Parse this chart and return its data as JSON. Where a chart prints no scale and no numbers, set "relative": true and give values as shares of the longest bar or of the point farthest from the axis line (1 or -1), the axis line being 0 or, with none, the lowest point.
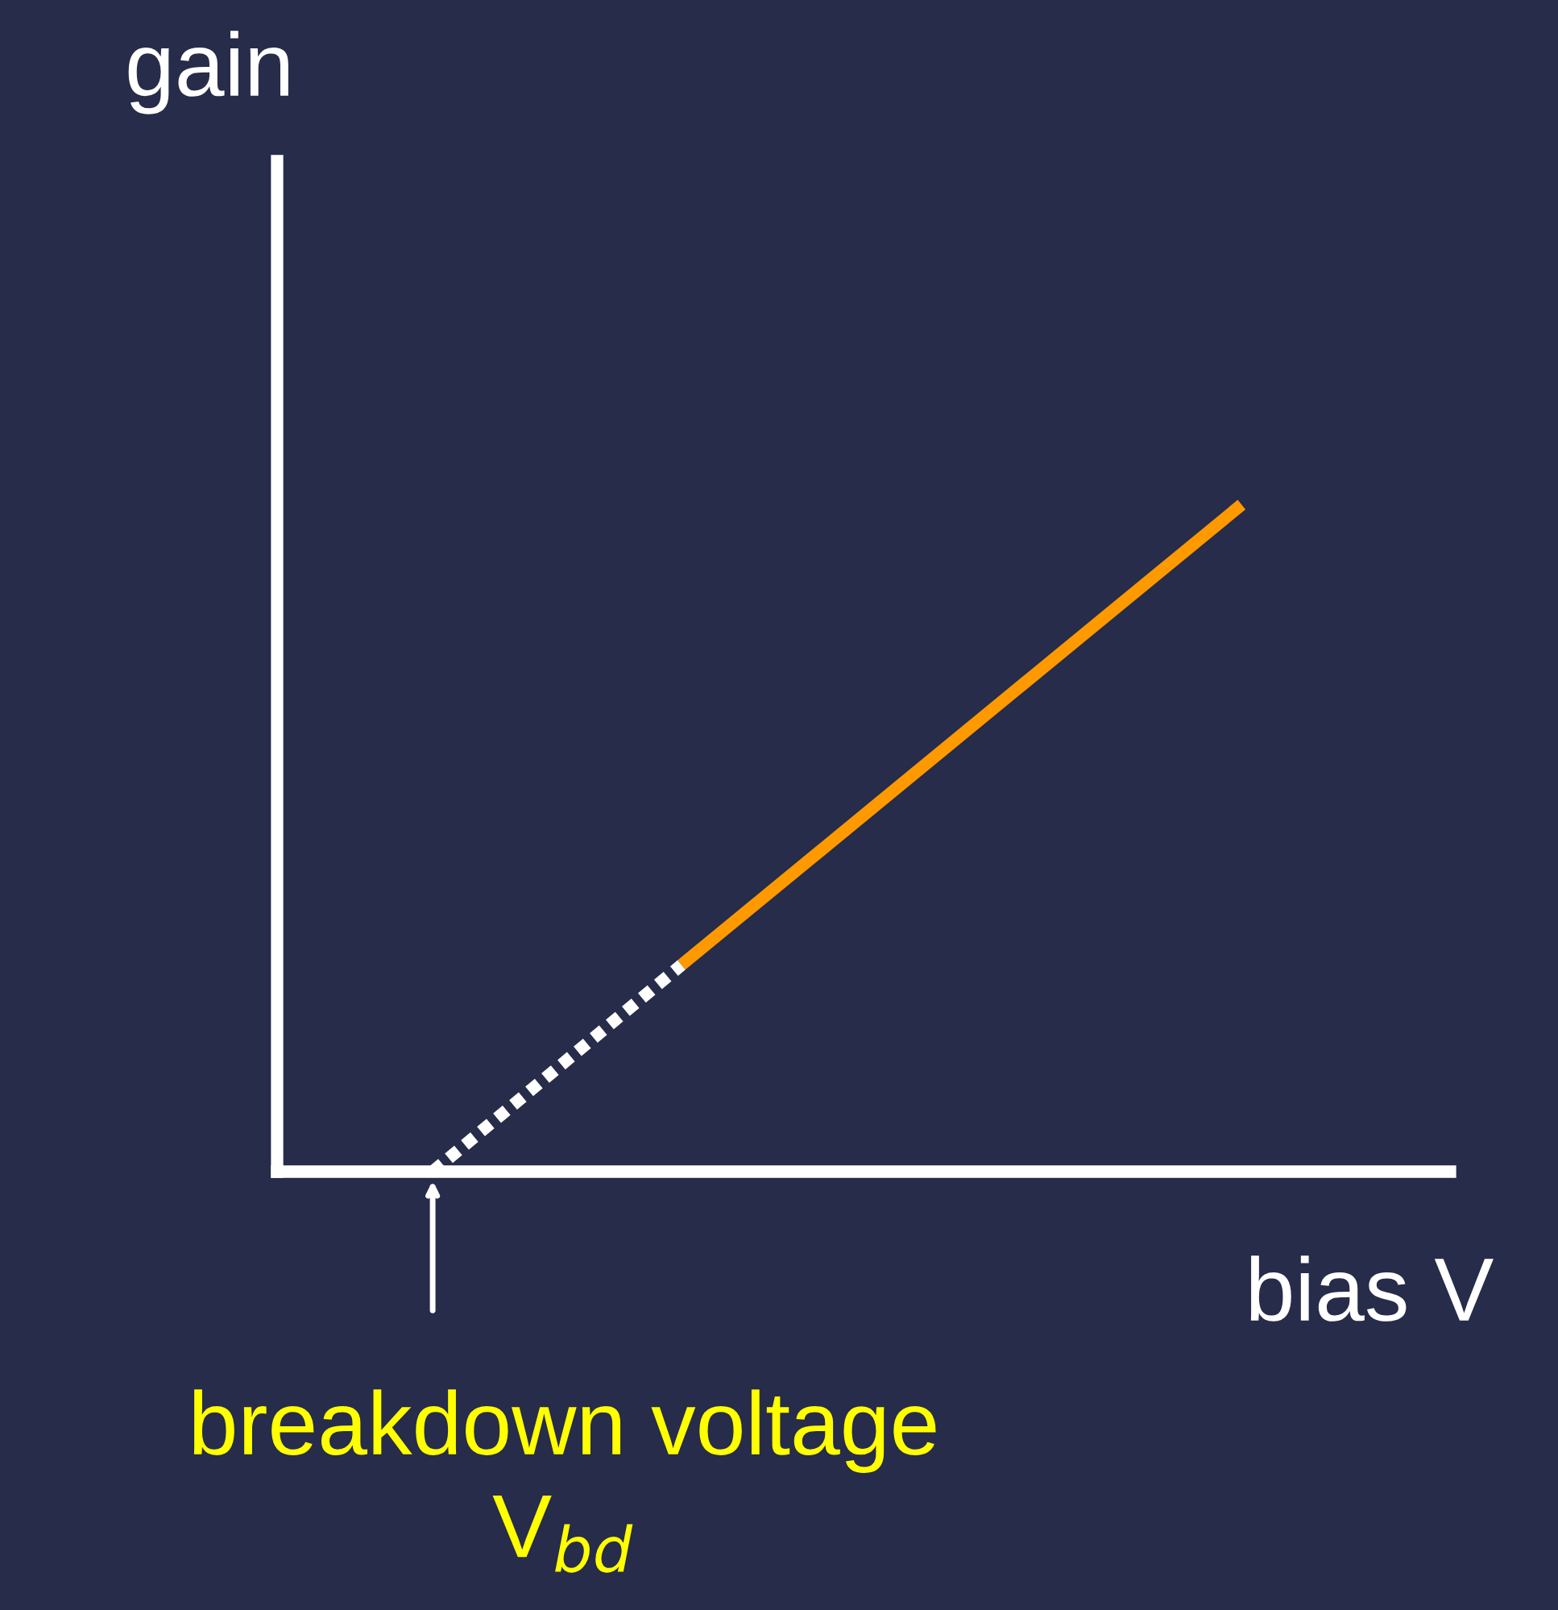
{
  "chart_data": {
    "type": "line",
    "relative": true,
    "xlabel": "bias V",
    "ylabel": "gain",
    "categories": [
      null,
      null,
      null,
      null,
      null,
      null,
      null,
      null,
      null,
      null,
      null,
      null,
      null,
      null,
      null,
      null,
      null,
      null,
      null,
      null,
      null,
      null,
      null,
      null,
      null,
      null,
      null
    ],
    "series": [
      {
        "color": "#ffffff",
        "line_style": "dotted",
        "values": [
          0,
          null,
          null,
          null,
          null,
          null,
          null,
          null,
          0.31,
          null,
          null,
          null,
          null,
          null,
          null,
          null,
          null,
          null,
          null,
          null,
          null,
          null,
          null,
          null,
          null,
          null,
          null
        ]
      },
      {
        "color": "#ff9900",
        "line_style": "solid",
        "values": [
          null,
          null,
          null,
          null,
          null,
          null,
          null,
          null,
          0.31,
          null,
          null,
          null,
          null,
          null,
          null,
          null,
          null,
          null,
          null,
          null,
          null,
          null,
          null,
          null,
          null,
          null,
          1
        ]
      }
    ],
    "annotations": [
      "breakdown voltage\nV$_{bd}$"
    ],
    "legend": false,
    "marker": "none"
  }
}
